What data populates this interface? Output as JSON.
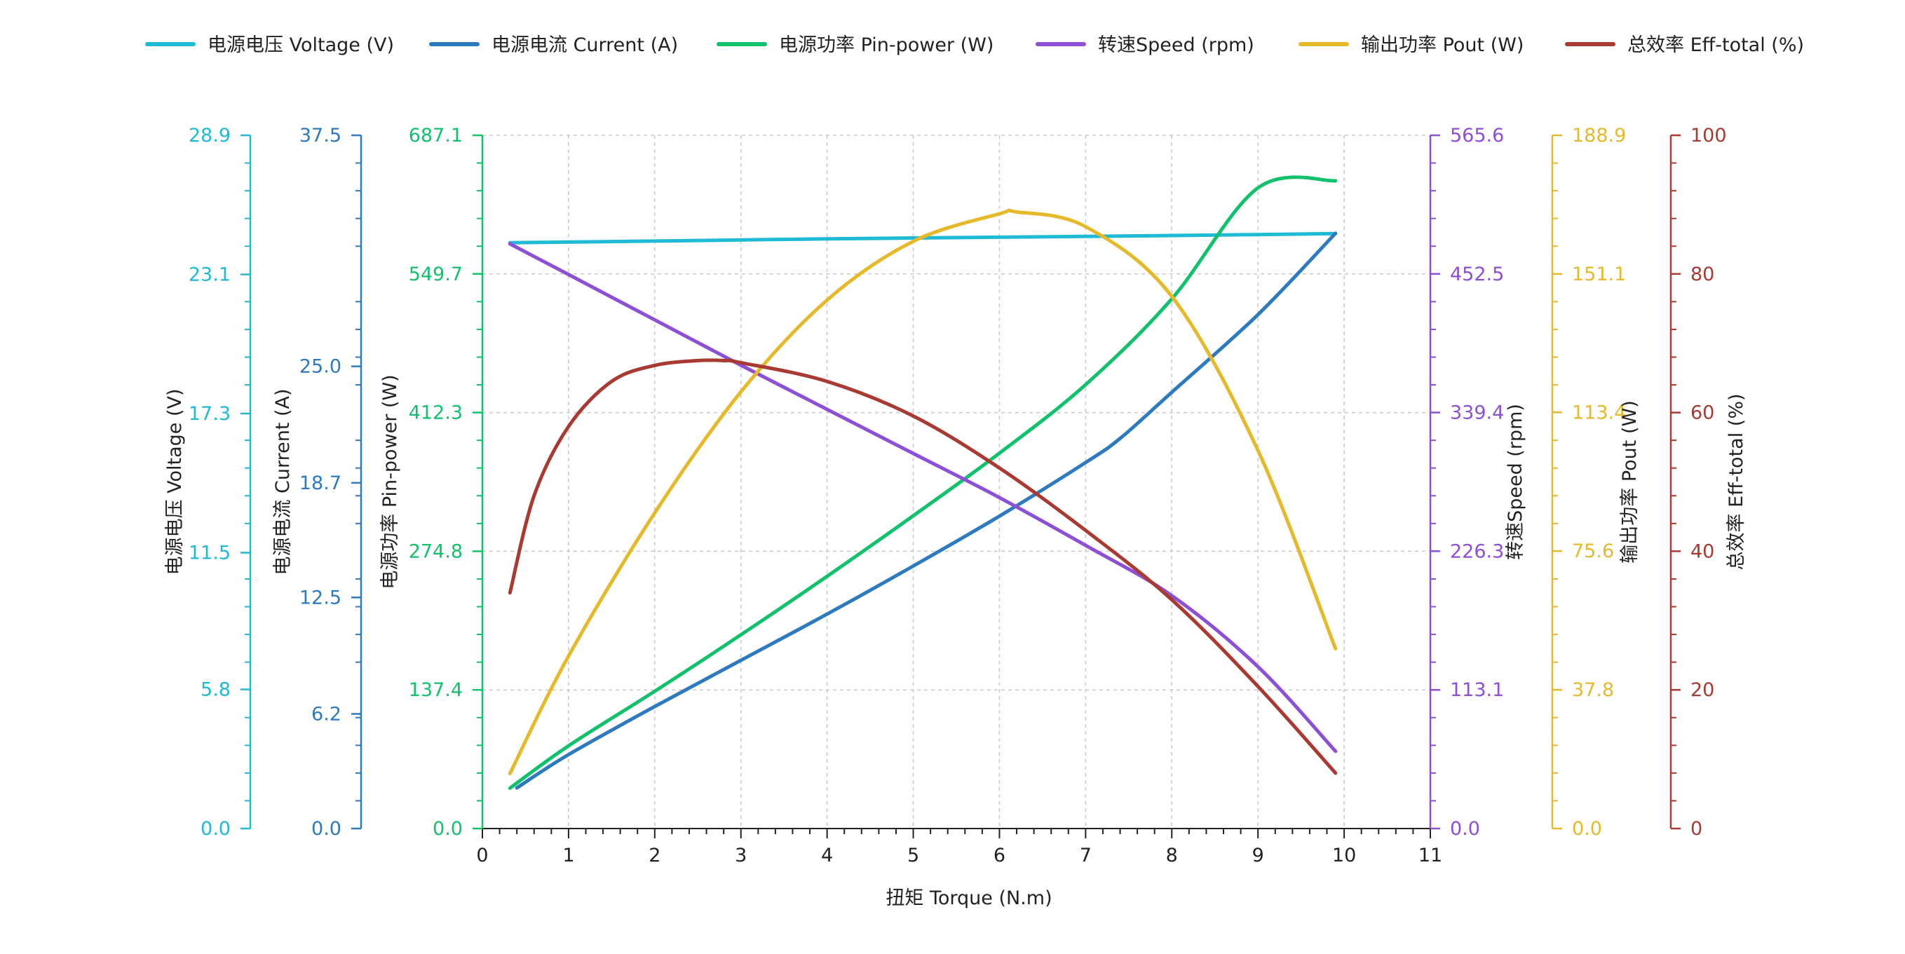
{
  "chart_data": {
    "type": "line",
    "xlabel": "扭矩 Torque (N.m)",
    "xlim": [
      0,
      11
    ],
    "x_ticks": [
      "0",
      "1",
      "2",
      "3",
      "4",
      "5",
      "6",
      "7",
      "8",
      "9",
      "10",
      "11"
    ],
    "grid": true,
    "legend_position": "top",
    "axes": [
      {
        "id": "voltage",
        "label": "电源电压 Voltage (V)",
        "side": "left",
        "color": "#1fbad6",
        "range": [
          0,
          28.9
        ],
        "ticks": [
          "0.0",
          "5.8",
          "11.5",
          "17.3",
          "23.1",
          "28.9"
        ]
      },
      {
        "id": "current",
        "label": "电源电流 Current (A)",
        "side": "left",
        "color": "#2e7abf",
        "range": [
          0,
          37.5
        ],
        "ticks": [
          "0.0",
          "6.2",
          "12.5",
          "18.7",
          "25.0",
          "37.5"
        ]
      },
      {
        "id": "power",
        "label": "电源功率 Pin-power (W)",
        "side": "left",
        "color": "#12c16b",
        "range": [
          0,
          687.1
        ],
        "ticks": [
          "0.0",
          "137.4",
          "274.8",
          "412.3",
          "549.7",
          "687.1"
        ]
      },
      {
        "id": "speed",
        "label": "转速Speed (rpm)",
        "side": "right",
        "color": "#8d4fd6",
        "range": [
          0,
          565.6
        ],
        "ticks": [
          "0.0",
          "113.1",
          "226.3",
          "339.4",
          "452.5",
          "565.6"
        ]
      },
      {
        "id": "pout",
        "label": "输出功率 Pout (W)",
        "side": "right",
        "color": "#e6b92a",
        "range": [
          0,
          188.9
        ],
        "ticks": [
          "0.0",
          "37.8",
          "75.6",
          "113.4",
          "151.1",
          "188.9"
        ]
      },
      {
        "id": "eff",
        "label": "总效率 Eff-total (%)",
        "side": "right",
        "color": "#a83a32",
        "range": [
          0,
          100
        ],
        "ticks": [
          "0",
          "20",
          "40",
          "60",
          "80",
          "100"
        ]
      }
    ],
    "series": [
      {
        "name": "电源电压 Voltage (V)",
        "axis": "voltage",
        "color": "#1fbad6",
        "x": [
          0.32,
          2,
          4,
          6,
          8,
          9.9
        ],
        "y": [
          24.42,
          24.49,
          24.58,
          24.65,
          24.72,
          24.8
        ]
      },
      {
        "name": "电源电流 Current (A)",
        "axis": "current",
        "color": "#2e7abf",
        "x": [
          0.4,
          1,
          2,
          3,
          4,
          5,
          6,
          7,
          7.4,
          8,
          9,
          9.9
        ],
        "y": [
          2.2,
          4.0,
          6.6,
          9.1,
          11.6,
          14.2,
          16.9,
          19.8,
          21.1,
          23.6,
          27.8,
          32.2
        ]
      },
      {
        "name": "电源功率 Pin-power (W)",
        "axis": "power",
        "color": "#12c16b",
        "x": [
          0.32,
          1,
          2,
          3,
          4,
          5,
          6,
          7,
          8,
          9,
          9.9
        ],
        "y": [
          40,
          82,
          136,
          192,
          250,
          310,
          372,
          440,
          525,
          635,
          642
        ]
      },
      {
        "name": "转速Speed (rpm)",
        "axis": "speed",
        "color": "#8d4fd6",
        "x": [
          0.32,
          1,
          2,
          3,
          4,
          5,
          6,
          7,
          8,
          9,
          9.9
        ],
        "y": [
          477,
          452,
          415,
          378,
          342,
          306,
          270,
          231,
          190,
          132,
          63
        ]
      },
      {
        "name": "输出功率 Pout (W)",
        "axis": "pout",
        "color": "#e6b92a",
        "x": [
          0.32,
          1,
          2,
          3,
          4,
          5,
          6,
          6.2,
          7,
          8,
          9,
          9.9
        ],
        "y": [
          15,
          47,
          86,
          119,
          144,
          160,
          167.5,
          168,
          164,
          145,
          103,
          49
        ]
      },
      {
        "name": "总效率 Eff-total (%)",
        "axis": "eff",
        "color": "#a83a32",
        "x": [
          0.32,
          0.6,
          1,
          1.5,
          2,
          2.5,
          2.8,
          3,
          4,
          5,
          6,
          7,
          8,
          9,
          9.9
        ],
        "y": [
          34,
          48,
          58,
          64.5,
          66.8,
          67.5,
          67.5,
          67.2,
          64.5,
          59.5,
          52,
          43,
          33,
          20.5,
          8
        ]
      }
    ]
  }
}
